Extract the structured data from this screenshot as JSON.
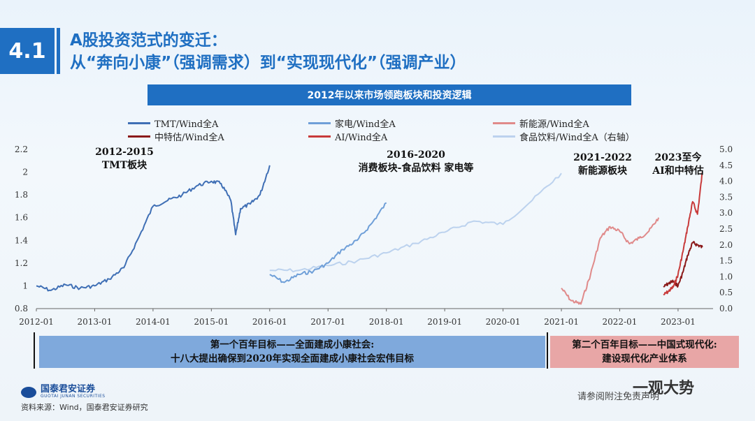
{
  "header": {
    "section_number": "4.1",
    "title_line1": "A股投资范式的变迁：",
    "title_line2": "从“奔向小康”（强调需求）到“实现现代化”（强调产业）",
    "banner": "2012年以来市场领跑板块和投资逻辑"
  },
  "footer": {
    "source": "资料来源：Wind，国泰君安证券研究",
    "logo_cn": "国泰君安证券",
    "logo_en": "GUOTAI JUNAN SECURITIES",
    "disclaimer": "请参阅附注免责声明",
    "watermark": "一观大势"
  },
  "bottom_boxes": {
    "box1_line1": "第一个百年目标——全面建成小康社会:",
    "box1_line2": "十八大提出确保到2020年实现全面建成小康社会宏伟目标",
    "box2_line1": "第二个百年目标——中国式现代化:",
    "box2_line2": "建设现代化产业体系"
  },
  "colors": {
    "tmt": "#3f6fb5",
    "jiadian": "#6f9fd8",
    "xinnengyuan": "#e08a8a",
    "zhongteguo": "#8b1a1a",
    "ai": "#c83a3a",
    "shipin": "#bcd2ee"
  },
  "chart_data": {
    "type": "line",
    "title": "2012年以来市场领跑板块和投资逻辑",
    "x_ticks": [
      "2012-01",
      "2013-01",
      "2014-01",
      "2015-01",
      "2016-01",
      "2017-01",
      "2018-01",
      "2019-01",
      "2020-01",
      "2021-01",
      "2022-01",
      "2023-01"
    ],
    "y_left_ticks": [
      "0.8",
      "1",
      "1.2",
      "1.4",
      "1.6",
      "1.8",
      "2",
      "2.2"
    ],
    "y_left_range": [
      0.8,
      2.2
    ],
    "y_right_ticks": [
      "0.0",
      "0.5",
      "1.0",
      "1.5",
      "2.0",
      "2.5",
      "3.0",
      "3.5",
      "4.0",
      "4.5",
      "5.0"
    ],
    "y_right_range": [
      0.0,
      5.0
    ],
    "legend": [
      "TMT/Wind全A",
      "家电/Wind全A",
      "新能源/Wind全A",
      "中特估/Wind全A",
      "AI/Wind全A",
      "食品饮料/Wind全A（右轴）"
    ],
    "annotations": [
      {
        "line1": "2012-2015",
        "line2": "TMT板块"
      },
      {
        "line1": "2016-2020",
        "line2": "消费板块-食品饮料 家电等"
      },
      {
        "line1": "2021-2022",
        "line2": "新能源板块"
      },
      {
        "line1": "2023至今",
        "line2": "AI和中特估"
      }
    ],
    "series": [
      {
        "name": "TMT/Wind全A",
        "axis": "left",
        "x": [
          "2012-01",
          "2012-04",
          "2012-07",
          "2012-10",
          "2013-01",
          "2013-04",
          "2013-07",
          "2013-10",
          "2014-01",
          "2014-04",
          "2014-07",
          "2014-10",
          "2015-01",
          "2015-03",
          "2015-05",
          "2015-06",
          "2015-07",
          "2015-09",
          "2015-11",
          "2016-01"
        ],
        "y": [
          1.0,
          0.96,
          1.01,
          0.98,
          1.0,
          1.06,
          1.16,
          1.42,
          1.7,
          1.75,
          1.8,
          1.88,
          1.92,
          1.9,
          1.75,
          1.45,
          1.68,
          1.72,
          1.8,
          2.06
        ]
      },
      {
        "name": "家电/Wind全A",
        "axis": "left",
        "x": [
          "2016-01",
          "2016-04",
          "2016-07",
          "2016-10",
          "2017-01",
          "2017-04",
          "2017-07",
          "2017-10",
          "2018-01"
        ],
        "y": [
          1.1,
          1.03,
          1.1,
          1.13,
          1.2,
          1.32,
          1.4,
          1.55,
          1.73
        ]
      },
      {
        "name": "新能源/Wind全A",
        "axis": "left",
        "x": [
          "2021-01",
          "2021-03",
          "2021-05",
          "2021-07",
          "2021-09",
          "2021-11",
          "2022-01",
          "2022-03",
          "2022-05",
          "2022-07",
          "2022-09"
        ],
        "y": [
          0.98,
          0.87,
          0.84,
          1.1,
          1.42,
          1.52,
          1.48,
          1.37,
          1.42,
          1.48,
          1.6
        ]
      },
      {
        "name": "中特估/Wind全A",
        "axis": "left",
        "x": [
          "2022-10",
          "2022-11",
          "2022-12",
          "2023-01",
          "2023-02",
          "2023-03",
          "2023-04",
          "2023-05",
          "2023-06"
        ],
        "y": [
          0.99,
          1.02,
          1.04,
          1.0,
          1.12,
          1.27,
          1.38,
          1.36,
          1.34
        ]
      },
      {
        "name": "AI/Wind全A",
        "axis": "left",
        "x": [
          "2022-10",
          "2022-11",
          "2022-12",
          "2023-01",
          "2023-02",
          "2023-03",
          "2023-04",
          "2023-05",
          "2023-06"
        ],
        "y": [
          0.92,
          0.95,
          0.99,
          1.1,
          1.3,
          1.52,
          1.74,
          1.63,
          2.0
        ]
      },
      {
        "name": "食品饮料/Wind全A（右轴）",
        "axis": "right",
        "x": [
          "2016-01",
          "2016-07",
          "2017-01",
          "2017-07",
          "2018-01",
          "2018-07",
          "2019-01",
          "2019-07",
          "2020-01",
          "2020-07",
          "2021-01"
        ],
        "y": [
          1.2,
          1.2,
          1.35,
          1.5,
          1.75,
          2.05,
          2.4,
          2.75,
          2.65,
          3.4,
          4.25
        ]
      }
    ]
  }
}
